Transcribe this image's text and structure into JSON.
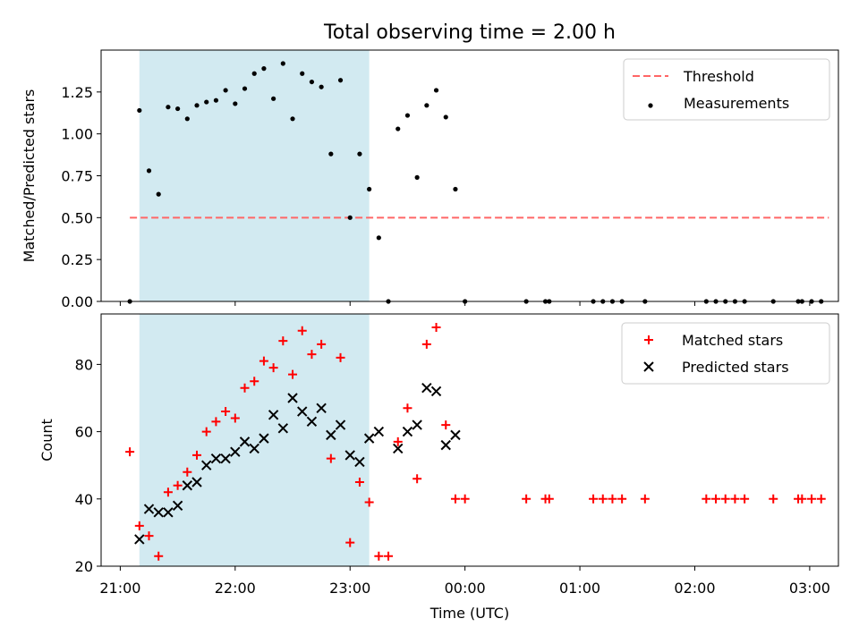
{
  "figure": {
    "title": "Total observing time = 2.00 h"
  },
  "chart_data": [
    {
      "type": "scatter",
      "panel": "top",
      "ylabel": "Matched/Predicted stars",
      "xlabel": "",
      "xlim": [
        "21:00",
        "03:00"
      ],
      "ylim": [
        0,
        1.5
      ],
      "y_ticks": [
        0.0,
        0.25,
        0.5,
        0.75,
        1.0,
        1.25
      ],
      "y_tick_labels": [
        "0.00",
        "0.25",
        "0.50",
        "0.75",
        "1.00",
        "1.25"
      ],
      "grid": false,
      "legend": "top-right",
      "shaded_span": {
        "start": "21:10",
        "end": "23:10",
        "color": "#add8e6"
      },
      "threshold": {
        "name": "Threshold",
        "value": 0.5,
        "x_start": "21:05",
        "x_end": "03:10",
        "color": "#ff6666",
        "style": "dashed"
      },
      "series": [
        {
          "name": "Measurements",
          "marker": "dot",
          "color": "#000000",
          "points": [
            [
              "21:05",
              0.0
            ],
            [
              "21:10",
              1.14
            ],
            [
              "21:15",
              0.78
            ],
            [
              "21:20",
              0.64
            ],
            [
              "21:25",
              1.16
            ],
            [
              "21:30",
              1.15
            ],
            [
              "21:35",
              1.09
            ],
            [
              "21:40",
              1.17
            ],
            [
              "21:45",
              1.19
            ],
            [
              "21:50",
              1.2
            ],
            [
              "21:55",
              1.26
            ],
            [
              "22:00",
              1.18
            ],
            [
              "22:05",
              1.27
            ],
            [
              "22:10",
              1.36
            ],
            [
              "22:15",
              1.39
            ],
            [
              "22:20",
              1.21
            ],
            [
              "22:25",
              1.42
            ],
            [
              "22:30",
              1.09
            ],
            [
              "22:35",
              1.36
            ],
            [
              "22:40",
              1.31
            ],
            [
              "22:45",
              1.28
            ],
            [
              "22:50",
              0.88
            ],
            [
              "22:55",
              1.32
            ],
            [
              "23:00",
              0.5
            ],
            [
              "23:05",
              0.88
            ],
            [
              "23:10",
              0.67
            ],
            [
              "23:15",
              0.38
            ],
            [
              "23:20",
              0.0
            ],
            [
              "23:25",
              1.03
            ],
            [
              "23:30",
              1.11
            ],
            [
              "23:35",
              0.74
            ],
            [
              "23:40",
              1.17
            ],
            [
              "23:45",
              1.26
            ],
            [
              "23:50",
              1.1
            ],
            [
              "23:55",
              0.67
            ],
            [
              "00:00",
              0.0
            ],
            [
              "00:32",
              0.0
            ],
            [
              "00:42",
              0.0
            ],
            [
              "00:44",
              0.0
            ],
            [
              "01:07",
              0.0
            ],
            [
              "01:12",
              0.0
            ],
            [
              "01:17",
              0.0
            ],
            [
              "01:22",
              0.0
            ],
            [
              "01:34",
              0.0
            ],
            [
              "02:06",
              0.0
            ],
            [
              "02:11",
              0.0
            ],
            [
              "02:16",
              0.0
            ],
            [
              "02:21",
              0.0
            ],
            [
              "02:26",
              0.0
            ],
            [
              "02:41",
              0.0
            ],
            [
              "02:54",
              0.0
            ],
            [
              "02:56",
              0.0
            ],
            [
              "03:01",
              0.0
            ],
            [
              "03:06",
              0.0
            ]
          ]
        }
      ]
    },
    {
      "type": "scatter",
      "panel": "bottom",
      "ylabel": "Count",
      "xlabel": "Time (UTC)",
      "xlim": [
        "21:00",
        "03:00"
      ],
      "ylim": [
        20,
        95
      ],
      "y_ticks": [
        20,
        40,
        60,
        80
      ],
      "y_tick_labels": [
        "20",
        "40",
        "60",
        "80"
      ],
      "x_ticks": [
        "21:00",
        "22:00",
        "23:00",
        "00:00",
        "01:00",
        "02:00",
        "03:00"
      ],
      "grid": false,
      "legend": "top-right",
      "shaded_span": {
        "start": "21:10",
        "end": "23:10",
        "color": "#add8e6"
      },
      "series": [
        {
          "name": "Matched stars",
          "marker": "plus",
          "color": "#ff0000",
          "points": [
            [
              "21:05",
              54
            ],
            [
              "21:10",
              32
            ],
            [
              "21:15",
              29
            ],
            [
              "21:20",
              23
            ],
            [
              "21:25",
              42
            ],
            [
              "21:30",
              44
            ],
            [
              "21:35",
              48
            ],
            [
              "21:40",
              53
            ],
            [
              "21:45",
              60
            ],
            [
              "21:50",
              63
            ],
            [
              "21:55",
              66
            ],
            [
              "22:00",
              64
            ],
            [
              "22:05",
              73
            ],
            [
              "22:10",
              75
            ],
            [
              "22:15",
              81
            ],
            [
              "22:20",
              79
            ],
            [
              "22:25",
              87
            ],
            [
              "22:30",
              77
            ],
            [
              "22:35",
              90
            ],
            [
              "22:40",
              83
            ],
            [
              "22:45",
              86
            ],
            [
              "22:50",
              52
            ],
            [
              "22:55",
              82
            ],
            [
              "23:00",
              27
            ],
            [
              "23:05",
              45
            ],
            [
              "23:10",
              39
            ],
            [
              "23:15",
              23
            ],
            [
              "23:20",
              23
            ],
            [
              "23:25",
              57
            ],
            [
              "23:30",
              67
            ],
            [
              "23:35",
              46
            ],
            [
              "23:40",
              86
            ],
            [
              "23:45",
              91
            ],
            [
              "23:50",
              62
            ],
            [
              "23:55",
              40
            ],
            [
              "00:00",
              40
            ],
            [
              "00:32",
              40
            ],
            [
              "00:42",
              40
            ],
            [
              "00:44",
              40
            ],
            [
              "01:07",
              40
            ],
            [
              "01:12",
              40
            ],
            [
              "01:17",
              40
            ],
            [
              "01:22",
              40
            ],
            [
              "01:34",
              40
            ],
            [
              "02:06",
              40
            ],
            [
              "02:11",
              40
            ],
            [
              "02:16",
              40
            ],
            [
              "02:21",
              40
            ],
            [
              "02:26",
              40
            ],
            [
              "02:41",
              40
            ],
            [
              "02:54",
              40
            ],
            [
              "02:56",
              40
            ],
            [
              "03:01",
              40
            ],
            [
              "03:06",
              40
            ]
          ]
        },
        {
          "name": "Predicted stars",
          "marker": "x",
          "color": "#000000",
          "points": [
            [
              "21:10",
              28
            ],
            [
              "21:15",
              37
            ],
            [
              "21:20",
              36
            ],
            [
              "21:25",
              36
            ],
            [
              "21:30",
              38
            ],
            [
              "21:35",
              44
            ],
            [
              "21:40",
              45
            ],
            [
              "21:45",
              50
            ],
            [
              "21:50",
              52
            ],
            [
              "21:55",
              52
            ],
            [
              "22:00",
              54
            ],
            [
              "22:05",
              57
            ],
            [
              "22:10",
              55
            ],
            [
              "22:15",
              58
            ],
            [
              "22:20",
              65
            ],
            [
              "22:25",
              61
            ],
            [
              "22:30",
              70
            ],
            [
              "22:35",
              66
            ],
            [
              "22:40",
              63
            ],
            [
              "22:45",
              67
            ],
            [
              "22:50",
              59
            ],
            [
              "22:55",
              62
            ],
            [
              "23:00",
              53
            ],
            [
              "23:05",
              51
            ],
            [
              "23:10",
              58
            ],
            [
              "23:15",
              60
            ],
            [
              "23:25",
              55
            ],
            [
              "23:30",
              60
            ],
            [
              "23:35",
              62
            ],
            [
              "23:40",
              73
            ],
            [
              "23:45",
              72
            ],
            [
              "23:50",
              56
            ],
            [
              "23:55",
              59
            ]
          ]
        }
      ]
    }
  ]
}
